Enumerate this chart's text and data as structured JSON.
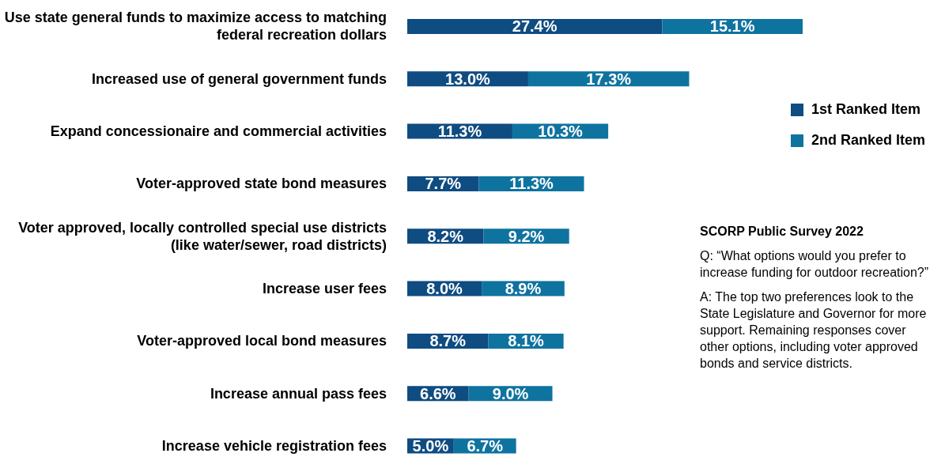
{
  "chart_data": {
    "type": "bar",
    "orientation": "horizontal",
    "stacked": true,
    "legend": "right",
    "categories": [
      "Use state general funds to maximize access to matching federal recreation dollars",
      "Increased use of general government funds",
      "Expand concessionaire and commercial activities",
      "Voter-approved state bond measures",
      "Voter approved, locally controlled special use districts (like water/sewer, road districts)",
      "Increase user fees",
      "Voter-approved local bond measures",
      "Increase annual pass fees",
      "Increase vehicle registration fees"
    ],
    "series": [
      {
        "name": "1st Ranked Item",
        "color": "#0f4c81",
        "values": [
          27.4,
          13.0,
          11.3,
          7.7,
          8.2,
          8.0,
          8.7,
          6.6,
          5.0
        ],
        "value_labels": [
          "27.4%",
          "13.0%",
          "11.3%",
          "7.7%",
          "8.2%",
          "8.0%",
          "8.7%",
          "6.6%",
          "5.0%"
        ]
      },
      {
        "name": "2nd Ranked Item",
        "color": "#0f73a0",
        "values": [
          15.1,
          17.3,
          10.3,
          11.3,
          9.2,
          8.9,
          8.1,
          9.0,
          6.7
        ],
        "value_labels": [
          "15.1%",
          "17.3%",
          "10.3%",
          "11.3%",
          "9.2%",
          "8.9%",
          "8.1%",
          "9.0%",
          "6.7%"
        ]
      }
    ],
    "annotations": [
      "SCORP Public Survey 2022",
      "Q: “What options would you prefer to increase funding for outdoor recreation?”",
      "A: The top two preferences look to the State Legislature and Governor for more support. Remaining responses cover other options, including voter approved bonds and service districts."
    ]
  }
}
